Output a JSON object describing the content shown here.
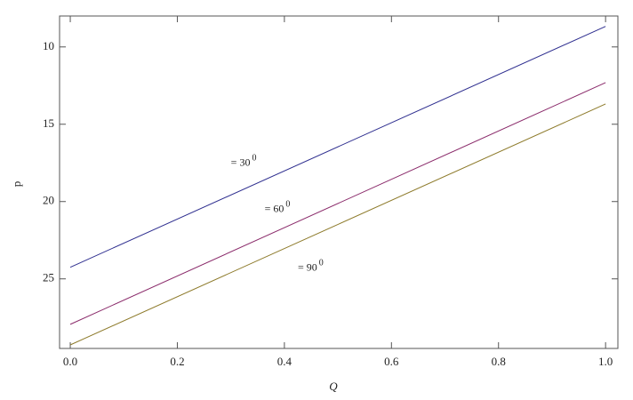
{
  "chart_data": {
    "type": "line",
    "x_label": "Q⃗",
    "y_label": "p",
    "x": [
      0,
      1
    ],
    "series": [
      {
        "color": "#2e2e8f",
        "values": [
          24.25,
          8.67
        ]
      },
      {
        "color": "#8a2a6a",
        "values": [
          27.94,
          12.31
        ]
      },
      {
        "color": "#8d7a2a",
        "values": [
          29.27,
          13.69
        ]
      }
    ],
    "annotations": [
      {
        "text": "= 30",
        "sup": "0",
        "x": 0.3,
        "y": 17.5
      },
      {
        "text": "= 60",
        "sup": "0",
        "x": 0.363,
        "y": 20.5
      },
      {
        "text": "= 90",
        "sup": "0",
        "x": 0.425,
        "y": 24.3
      }
    ],
    "xlim": [
      -0.02,
      1.023
    ],
    "ylim": [
      8,
      29.5
    ],
    "y_reversed": true,
    "xticks": [
      {
        "value": 0,
        "label": "0.0"
      },
      0.2,
      0.4,
      0.6,
      0.8,
      {
        "value": 1,
        "label": "1.0"
      }
    ],
    "yticks": [
      10,
      15,
      20,
      25
    ]
  }
}
